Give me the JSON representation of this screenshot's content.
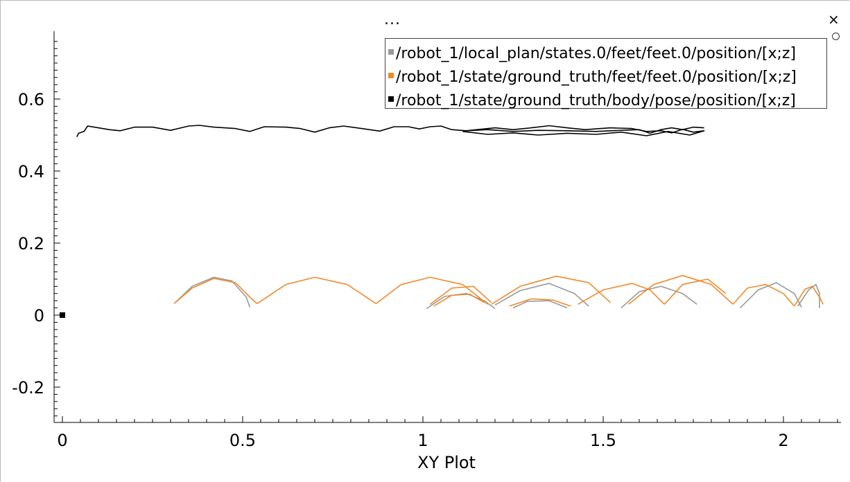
{
  "window": {
    "menu_label": "...",
    "close_label": "×"
  },
  "chart_data": {
    "type": "line",
    "title": "",
    "xlabel": "XY Plot",
    "ylabel": "",
    "xlim": [
      -0.02,
      2.2
    ],
    "ylim": [
      -0.3,
      0.78
    ],
    "grid": false,
    "legend_position": "top-right",
    "x_ticks": [
      0,
      0.5,
      1,
      1.5,
      2
    ],
    "x_tick_labels": [
      "0",
      "0.5",
      "1",
      "1.5",
      "2"
    ],
    "y_ticks": [
      -0.2,
      0,
      0.2,
      0.4,
      0.6
    ],
    "y_tick_labels": [
      "-0.2",
      "0",
      "0.2",
      "0.4",
      "0.6"
    ],
    "series": [
      {
        "name": "/robot_1/local_plan/states.0/feet/feet.0/position/[x;z]",
        "color": "#999999",
        "segments": [
          [
            [
              0.31,
              0.032
            ],
            [
              0.36,
              0.08
            ],
            [
              0.42,
              0.105
            ],
            [
              0.47,
              0.095
            ],
            [
              0.51,
              0.05
            ],
            [
              0.52,
              0.022
            ]
          ],
          [
            [
              1.01,
              0.018
            ],
            [
              1.06,
              0.052
            ],
            [
              1.12,
              0.06
            ],
            [
              1.17,
              0.04
            ],
            [
              1.2,
              0.018
            ]
          ],
          [
            [
              1.2,
              0.028
            ],
            [
              1.27,
              0.068
            ],
            [
              1.35,
              0.088
            ],
            [
              1.42,
              0.06
            ],
            [
              1.46,
              0.025
            ]
          ],
          [
            [
              1.55,
              0.02
            ],
            [
              1.6,
              0.065
            ],
            [
              1.66,
              0.08
            ],
            [
              1.72,
              0.06
            ],
            [
              1.76,
              0.03
            ]
          ],
          [
            [
              1.88,
              0.02
            ],
            [
              1.93,
              0.07
            ],
            [
              1.98,
              0.09
            ],
            [
              2.03,
              0.06
            ],
            [
              2.05,
              0.022
            ]
          ],
          [
            [
              2.04,
              0.025
            ],
            [
              2.07,
              0.07
            ],
            [
              2.09,
              0.085
            ],
            [
              2.1,
              0.06
            ],
            [
              2.1,
              0.02
            ]
          ],
          [
            [
              1.25,
              0.02
            ],
            [
              1.29,
              0.038
            ],
            [
              1.35,
              0.04
            ],
            [
              1.4,
              0.02
            ]
          ]
        ]
      },
      {
        "name": "/robot_1/state/ground_truth/feet/feet.0/position/[x;z]",
        "color": "#f08a2c",
        "segments": [
          [
            [
              0.31,
              0.032
            ],
            [
              0.36,
              0.075
            ],
            [
              0.42,
              0.102
            ],
            [
              0.48,
              0.09
            ],
            [
              0.52,
              0.05
            ],
            [
              0.54,
              0.032
            ]
          ],
          [
            [
              0.54,
              0.032
            ],
            [
              0.62,
              0.085
            ],
            [
              0.7,
              0.105
            ],
            [
              0.79,
              0.085
            ],
            [
              0.87,
              0.032
            ]
          ],
          [
            [
              0.87,
              0.032
            ],
            [
              0.94,
              0.085
            ],
            [
              1.02,
              0.105
            ],
            [
              1.11,
              0.085
            ],
            [
              1.18,
              0.03
            ]
          ],
          [
            [
              1.02,
              0.03
            ],
            [
              1.08,
              0.075
            ],
            [
              1.14,
              0.08
            ],
            [
              1.19,
              0.035
            ]
          ],
          [
            [
              1.03,
              0.025
            ],
            [
              1.08,
              0.055
            ],
            [
              1.13,
              0.058
            ],
            [
              1.17,
              0.035
            ]
          ],
          [
            [
              1.19,
              0.03
            ],
            [
              1.27,
              0.08
            ],
            [
              1.37,
              0.108
            ],
            [
              1.46,
              0.09
            ],
            [
              1.52,
              0.035
            ]
          ],
          [
            [
              1.24,
              0.025
            ],
            [
              1.3,
              0.045
            ],
            [
              1.36,
              0.042
            ],
            [
              1.41,
              0.025
            ]
          ],
          [
            [
              1.43,
              0.03
            ],
            [
              1.5,
              0.07
            ],
            [
              1.58,
              0.088
            ],
            [
              1.63,
              0.07
            ],
            [
              1.67,
              0.03
            ]
          ],
          [
            [
              1.57,
              0.03
            ],
            [
              1.64,
              0.085
            ],
            [
              1.72,
              0.11
            ],
            [
              1.8,
              0.085
            ],
            [
              1.86,
              0.03
            ]
          ],
          [
            [
              1.86,
              0.03
            ],
            [
              1.9,
              0.075
            ],
            [
              1.95,
              0.085
            ],
            [
              2.0,
              0.06
            ],
            [
              2.03,
              0.025
            ]
          ],
          [
            [
              2.03,
              0.025
            ],
            [
              2.06,
              0.072
            ],
            [
              2.08,
              0.08
            ],
            [
              2.1,
              0.05
            ],
            [
              2.11,
              0.03
            ]
          ],
          [
            [
              1.67,
              0.03
            ],
            [
              1.72,
              0.085
            ],
            [
              1.79,
              0.1
            ],
            [
              1.84,
              0.06
            ]
          ]
        ]
      },
      {
        "name": "/robot_1/state/ground_truth/body/pose/position/[x;z]",
        "color": "#000000",
        "segments": [
          [
            [
              0.04,
              0.495
            ],
            [
              0.045,
              0.505
            ],
            [
              0.06,
              0.51
            ],
            [
              0.07,
              0.525
            ],
            [
              0.1,
              0.52
            ],
            [
              0.13,
              0.515
            ],
            [
              0.16,
              0.512
            ],
            [
              0.2,
              0.522
            ],
            [
              0.25,
              0.522
            ],
            [
              0.3,
              0.513
            ],
            [
              0.35,
              0.525
            ],
            [
              0.38,
              0.527
            ],
            [
              0.42,
              0.522
            ],
            [
              0.48,
              0.518
            ],
            [
              0.52,
              0.51
            ],
            [
              0.56,
              0.523
            ],
            [
              0.62,
              0.522
            ],
            [
              0.66,
              0.518
            ],
            [
              0.7,
              0.508
            ],
            [
              0.74,
              0.52
            ],
            [
              0.78,
              0.525
            ],
            [
              0.83,
              0.518
            ],
            [
              0.88,
              0.511
            ],
            [
              0.92,
              0.523
            ],
            [
              0.96,
              0.523
            ],
            [
              0.99,
              0.517
            ],
            [
              1.02,
              0.523
            ],
            [
              1.05,
              0.525
            ],
            [
              1.08,
              0.515
            ],
            [
              1.12,
              0.512
            ],
            [
              1.18,
              0.515
            ],
            [
              1.25,
              0.51
            ],
            [
              1.32,
              0.513
            ],
            [
              1.4,
              0.512
            ],
            [
              1.48,
              0.51
            ],
            [
              1.55,
              0.513
            ],
            [
              1.6,
              0.515
            ],
            [
              1.63,
              0.505
            ],
            [
              1.66,
              0.515
            ],
            [
              1.69,
              0.52
            ],
            [
              1.72,
              0.515
            ],
            [
              1.75,
              0.522
            ],
            [
              1.78,
              0.52
            ]
          ],
          [
            [
              1.11,
              0.51
            ],
            [
              1.18,
              0.502
            ],
            [
              1.25,
              0.506
            ],
            [
              1.32,
              0.5
            ],
            [
              1.4,
              0.505
            ],
            [
              1.48,
              0.502
            ],
            [
              1.55,
              0.508
            ],
            [
              1.62,
              0.498
            ],
            [
              1.68,
              0.51
            ],
            [
              1.74,
              0.5
            ],
            [
              1.78,
              0.512
            ],
            [
              1.75,
              0.508
            ],
            [
              1.72,
              0.516
            ],
            [
              1.69,
              0.506
            ],
            [
              1.66,
              0.512
            ],
            [
              1.62,
              0.51
            ],
            [
              1.58,
              0.518
            ],
            [
              1.52,
              0.52
            ],
            [
              1.45,
              0.515
            ],
            [
              1.4,
              0.52
            ],
            [
              1.35,
              0.526
            ],
            [
              1.3,
              0.52
            ],
            [
              1.25,
              0.515
            ],
            [
              1.2,
              0.52
            ],
            [
              1.15,
              0.515
            ],
            [
              1.12,
              0.512
            ]
          ]
        ]
      }
    ]
  }
}
